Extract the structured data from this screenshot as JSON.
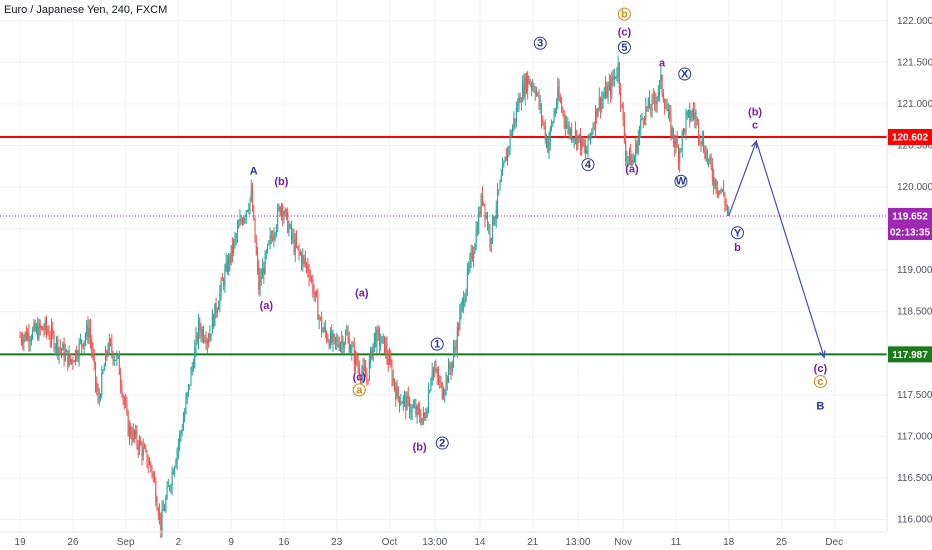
{
  "title": "Euro / Japanese Yen, 240, FXCM",
  "colors": {
    "up": "#26a69a",
    "down": "#ef5350",
    "resistance": "#ff0000",
    "support": "#1b7a1b",
    "wave_purple": "#7b1fa2",
    "wave_blue": "#283593",
    "wave_orange": "#c98a16",
    "projection": "#3f51b5",
    "current_price": "#9c27b0"
  },
  "chart_data": {
    "type": "candlestick",
    "ylim": [
      115.85,
      122.25
    ],
    "yticks": [
      "122.000",
      "121.500",
      "121.000",
      "120.500",
      "120.000",
      "119.500",
      "119.000",
      "118.500",
      "118.000",
      "117.500",
      "117.000",
      "116.500",
      "116.000"
    ],
    "ytick_values": [
      122.0,
      121.5,
      121.0,
      120.5,
      120.0,
      119.5,
      119.0,
      118.5,
      118.0,
      117.5,
      117.0,
      116.5,
      116.0
    ],
    "xticks": [
      "19",
      "26",
      "Sep",
      "2",
      "9",
      "16",
      "23",
      "Oct",
      "13:00",
      "14",
      "21",
      "13:00",
      "Nov",
      "11",
      "18",
      "25",
      "Dec"
    ],
    "xtick_bars": [
      0,
      42,
      84,
      126,
      168,
      210,
      252,
      294,
      330,
      366,
      408,
      444,
      480,
      522,
      564,
      606,
      648
    ],
    "bars_shown": 564,
    "x_range_bars": [
      -16,
      690
    ],
    "price_path": [
      [
        0,
        118.2
      ],
      [
        20,
        118.3
      ],
      [
        40,
        117.9
      ],
      [
        55,
        118.3
      ],
      [
        62,
        117.4
      ],
      [
        70,
        118.1
      ],
      [
        78,
        117.9
      ],
      [
        86,
        117.1
      ],
      [
        95,
        116.9
      ],
      [
        105,
        116.6
      ],
      [
        112,
        115.95
      ],
      [
        120,
        116.5
      ],
      [
        130,
        117.2
      ],
      [
        142,
        118.3
      ],
      [
        150,
        118.2
      ],
      [
        162,
        118.9
      ],
      [
        176,
        119.6
      ],
      [
        184,
        119.9
      ],
      [
        190,
        118.8
      ],
      [
        200,
        119.4
      ],
      [
        208,
        119.8
      ],
      [
        218,
        119.3
      ],
      [
        230,
        119.0
      ],
      [
        240,
        118.3
      ],
      [
        250,
        118.1
      ],
      [
        260,
        118.2
      ],
      [
        270,
        117.8
      ],
      [
        276,
        117.7
      ],
      [
        282,
        118.2
      ],
      [
        290,
        118.1
      ],
      [
        300,
        117.5
      ],
      [
        314,
        117.3
      ],
      [
        322,
        117.2
      ],
      [
        328,
        117.85
      ],
      [
        336,
        117.55
      ],
      [
        344,
        117.9
      ],
      [
        352,
        118.6
      ],
      [
        360,
        119.2
      ],
      [
        368,
        119.9
      ],
      [
        374,
        119.4
      ],
      [
        382,
        120.0
      ],
      [
        390,
        120.6
      ],
      [
        398,
        121.1
      ],
      [
        404,
        121.3
      ],
      [
        410,
        121.2
      ],
      [
        420,
        120.5
      ],
      [
        428,
        121.1
      ],
      [
        436,
        120.7
      ],
      [
        444,
        120.6
      ],
      [
        450,
        120.4
      ],
      [
        460,
        121.0
      ],
      [
        470,
        121.2
      ],
      [
        476,
        121.45
      ],
      [
        482,
        120.4
      ],
      [
        488,
        120.3
      ],
      [
        496,
        120.9
      ],
      [
        504,
        121.0
      ],
      [
        510,
        121.25
      ],
      [
        518,
        120.7
      ],
      [
        524,
        120.4
      ],
      [
        530,
        120.8
      ],
      [
        536,
        120.9
      ],
      [
        544,
        120.5
      ],
      [
        552,
        120.1
      ],
      [
        560,
        119.9
      ],
      [
        564,
        119.652
      ]
    ],
    "levels": [
      {
        "value": 120.602,
        "label": "120.602"
      },
      {
        "value": 117.987,
        "label": "117.987"
      }
    ],
    "current_price": {
      "value": 119.652,
      "label": "119.652",
      "countdown": "02:13:35"
    },
    "projection": [
      [
        564,
        119.652
      ],
      [
        586,
        120.55
      ],
      [
        640,
        117.95
      ]
    ],
    "annotations": [
      {
        "text": "A",
        "bar": 186,
        "price": 120.2,
        "color": "blue",
        "size": "large"
      },
      {
        "text": "(b)",
        "bar": 208,
        "price": 120.07,
        "color": "purple"
      },
      {
        "text": "(a)",
        "bar": 196,
        "price": 118.58,
        "color": "purple"
      },
      {
        "text": "(a)",
        "bar": 272,
        "price": 118.73,
        "color": "purple"
      },
      {
        "text": "(c)",
        "bar": 270,
        "price": 117.72,
        "color": "purple"
      },
      {
        "text": "a",
        "bar": 270,
        "price": 117.56,
        "color": "orange",
        "circle": true
      },
      {
        "text": "(b)",
        "bar": 318,
        "price": 116.88,
        "color": "purple"
      },
      {
        "text": "2",
        "bar": 336,
        "price": 116.92,
        "color": "blue",
        "circle": true
      },
      {
        "text": "1",
        "bar": 332,
        "price": 118.11,
        "color": "blue",
        "circle": true
      },
      {
        "text": "3",
        "bar": 414,
        "price": 121.73,
        "color": "blue",
        "circle": true
      },
      {
        "text": "4",
        "bar": 452,
        "price": 120.27,
        "color": "blue",
        "circle": true
      },
      {
        "text": "b",
        "bar": 481,
        "price": 122.08,
        "color": "orange",
        "circle": true
      },
      {
        "text": "(c)",
        "bar": 481,
        "price": 121.87,
        "color": "purple"
      },
      {
        "text": "5",
        "bar": 481,
        "price": 121.68,
        "color": "blue",
        "circle": true
      },
      {
        "text": "a",
        "bar": 511,
        "price": 121.5,
        "color": "purple"
      },
      {
        "text": "X",
        "bar": 529,
        "price": 121.36,
        "color": "blue",
        "circle": true
      },
      {
        "text": "(a)",
        "bar": 487,
        "price": 120.22,
        "color": "purple"
      },
      {
        "text": "W",
        "bar": 526,
        "price": 120.07,
        "color": "blue",
        "circle": true
      },
      {
        "text": "(b)",
        "bar": 585,
        "price": 120.91,
        "color": "purple"
      },
      {
        "text": "c",
        "bar": 585,
        "price": 120.75,
        "color": "purple"
      },
      {
        "text": "Y",
        "bar": 571,
        "price": 119.45,
        "color": "blue",
        "circle": true
      },
      {
        "text": "b",
        "bar": 571,
        "price": 119.28,
        "color": "purple"
      },
      {
        "text": "(c)",
        "bar": 637,
        "price": 117.82,
        "color": "purple"
      },
      {
        "text": "c",
        "bar": 637,
        "price": 117.66,
        "color": "orange",
        "circle": true
      },
      {
        "text": "B",
        "bar": 637,
        "price": 117.37,
        "color": "blue",
        "size": "large"
      }
    ]
  }
}
